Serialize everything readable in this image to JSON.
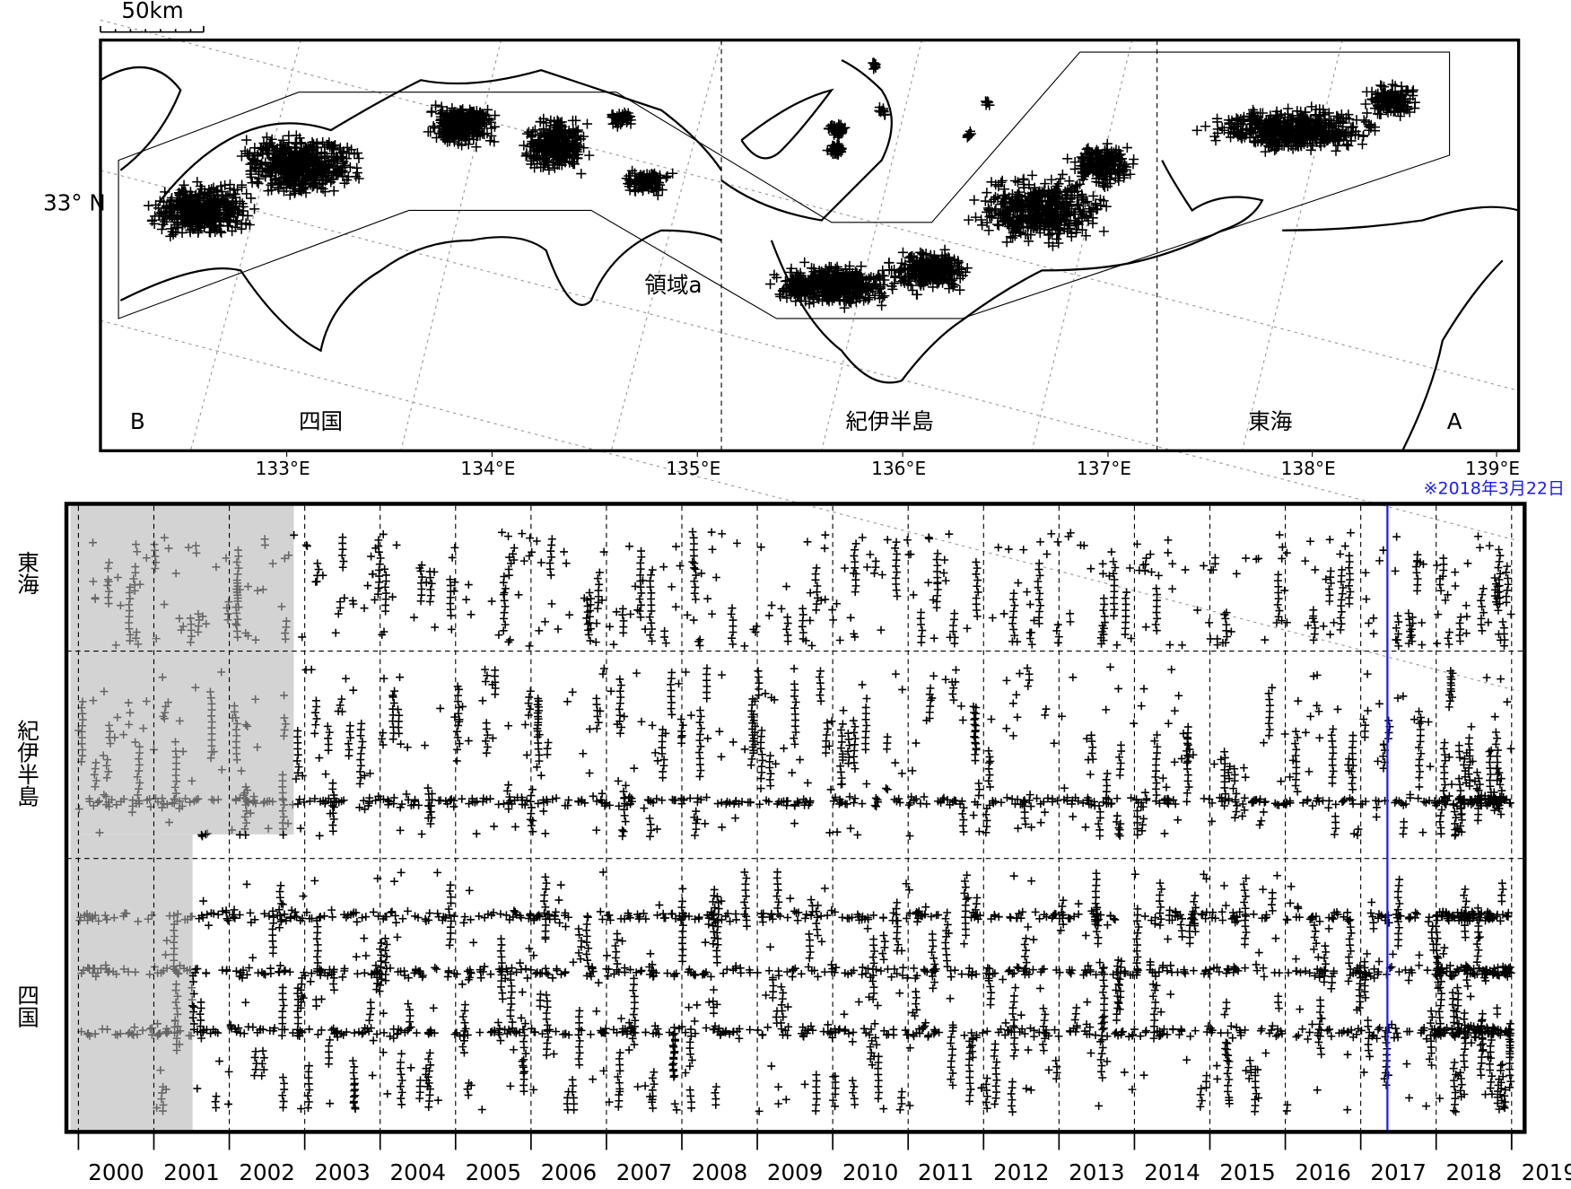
{
  "scale_bar": "50km",
  "map": {
    "lat_label": "33° N",
    "lon_labels": [
      "133°E",
      "134°E",
      "135°E",
      "136°E",
      "137°E",
      "138°E",
      "139°E"
    ],
    "region_label": "領域a",
    "section_labels": [
      "B",
      "四国",
      "紀伊半島",
      "東海",
      "A"
    ]
  },
  "note": "※2018年3月22日",
  "timeline": {
    "row_labels": [
      "東海",
      "紀伊半島",
      "四国"
    ],
    "years": [
      "2000",
      "2001",
      "2002",
      "2003",
      "2004",
      "2005",
      "2006",
      "2007",
      "2008",
      "2009",
      "2010",
      "2011",
      "2012",
      "2013",
      "2014",
      "2015",
      "2016",
      "2017",
      "2018",
      "2019"
    ]
  }
}
